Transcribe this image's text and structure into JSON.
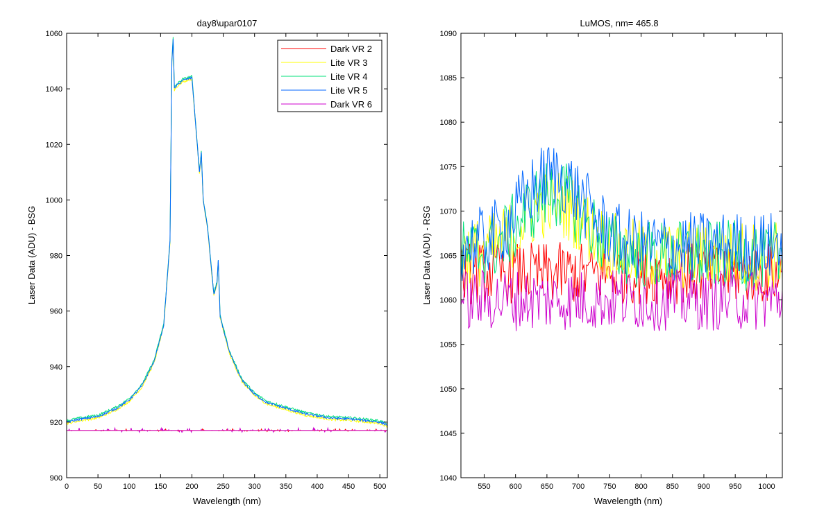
{
  "chart_data": [
    {
      "type": "line",
      "title": "day8\\upar0107",
      "xlabel": "Wavelength (nm)",
      "ylabel": "Laser Data (ADU) - BSG",
      "xlim": [
        0,
        512
      ],
      "ylim": [
        900,
        1060
      ],
      "xticks": [
        0,
        50,
        100,
        150,
        200,
        250,
        300,
        350,
        400,
        450,
        500
      ],
      "yticks": [
        900,
        920,
        940,
        960,
        980,
        1000,
        1020,
        1040,
        1060
      ],
      "grid": false,
      "legend_position": "top-right",
      "series": [
        {
          "name": "Dark VR 2",
          "color": "#ff0000",
          "kind": "flat",
          "baseline": 917,
          "noise": 0.5
        },
        {
          "name": "Lite VR 3",
          "color": "#ffff00",
          "kind": "peak",
          "offset": -0.5
        },
        {
          "name": "Lite VR 4",
          "color": "#00e07a",
          "kind": "peak",
          "offset": 0.5
        },
        {
          "name": "Lite VR 5",
          "color": "#0066ff",
          "kind": "peak",
          "offset": 0
        },
        {
          "name": "Dark VR 6",
          "color": "#cc00cc",
          "kind": "flat",
          "baseline": 917,
          "noise": 0.8
        }
      ],
      "peak_profile": {
        "x": [
          0,
          20,
          50,
          80,
          100,
          120,
          140,
          155,
          165,
          168,
          170,
          172,
          175,
          185,
          200,
          212,
          215,
          218,
          225,
          235,
          240,
          242,
          245,
          260,
          280,
          300,
          320,
          350,
          380,
          420,
          460,
          500,
          512
        ],
        "y": [
          920,
          921,
          922,
          925,
          928,
          933,
          942,
          955,
          985,
          1050,
          1058,
          1040,
          1041,
          1043,
          1044,
          1010,
          1017,
          1000,
          990,
          966,
          970,
          978,
          958,
          945,
          935,
          930,
          927,
          925,
          923,
          921.5,
          921,
          920,
          919
        ]
      }
    },
    {
      "type": "line",
      "title": "LuMOS, nm= 465.8",
      "xlabel": "Wavelength (nm)",
      "ylabel": "Laser Data (ADU) - RSG",
      "xlim": [
        513,
        1025
      ],
      "ylim": [
        1040,
        1090
      ],
      "xticks": [
        550,
        600,
        650,
        700,
        750,
        800,
        850,
        900,
        950,
        1000
      ],
      "yticks": [
        1040,
        1045,
        1050,
        1055,
        1060,
        1065,
        1070,
        1075,
        1080,
        1085,
        1090
      ],
      "grid": false,
      "series": [
        {
          "name": "Dark VR 2",
          "color": "#ff0000",
          "center": 1063,
          "early_bump": 0,
          "noise": 3.5
        },
        {
          "name": "Lite VR 3",
          "color": "#ffff00",
          "center": 1065,
          "early_bump": 6,
          "noise": 4
        },
        {
          "name": "Lite VR 4",
          "color": "#00e07a",
          "center": 1065,
          "early_bump": 7,
          "noise": 4
        },
        {
          "name": "Lite VR 5",
          "color": "#0066ff",
          "center": 1066,
          "early_bump": 8,
          "noise": 4
        },
        {
          "name": "Dark VR 6",
          "color": "#cc00cc",
          "center": 1060,
          "early_bump": 0,
          "noise": 3.5
        }
      ]
    }
  ]
}
